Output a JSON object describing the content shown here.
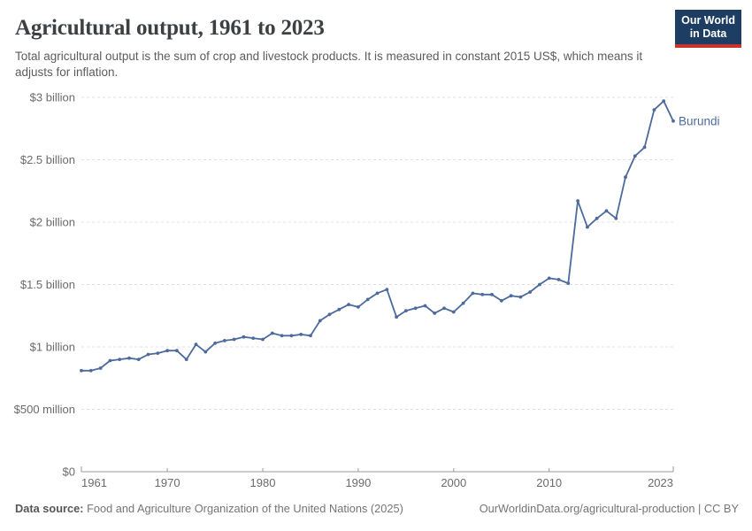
{
  "header": {
    "title": "Agricultural output, 1961 to 2023",
    "subtitle": "Total agricultural output is the sum of crop and livestock products. It is measured in constant 2015 US$, which means it adjusts for inflation.",
    "logo": {
      "line1": "Our World",
      "line2": "in Data",
      "bg_color": "#1d3d63",
      "stripe_color": "#cb342a"
    }
  },
  "chart_data": {
    "type": "line",
    "title": "Agricultural output, 1961 to 2023",
    "entity": "Burundi",
    "unit": "constant 2015 US$ (billions)",
    "line_color": "#4c6a9c",
    "grid": true,
    "legend_position": "end-of-line label",
    "x_range": [
      1961,
      2023
    ],
    "y_range_billion": [
      0,
      3
    ],
    "x_axis": {
      "ticks": [
        1961,
        1970,
        1980,
        1990,
        2000,
        2010,
        2023
      ]
    },
    "y_axis": {
      "ticks": [
        {
          "value": 0,
          "label": "$0"
        },
        {
          "value": 0.5,
          "label": "$500 million"
        },
        {
          "value": 1,
          "label": "$1 billion"
        },
        {
          "value": 1.5,
          "label": "$1.5 billion"
        },
        {
          "value": 2,
          "label": "$2 billion"
        },
        {
          "value": 2.5,
          "label": "$2.5 billion"
        },
        {
          "value": 3,
          "label": "$3 billion"
        }
      ]
    },
    "x": [
      1961,
      1962,
      1963,
      1964,
      1965,
      1966,
      1967,
      1968,
      1969,
      1970,
      1971,
      1972,
      1973,
      1974,
      1975,
      1976,
      1977,
      1978,
      1979,
      1980,
      1981,
      1982,
      1983,
      1984,
      1985,
      1986,
      1987,
      1988,
      1989,
      1990,
      1991,
      1992,
      1993,
      1994,
      1995,
      1996,
      1997,
      1998,
      1999,
      2000,
      2001,
      2002,
      2003,
      2004,
      2005,
      2006,
      2007,
      2008,
      2009,
      2010,
      2011,
      2012,
      2013,
      2014,
      2015,
      2016,
      2017,
      2018,
      2019,
      2020,
      2021,
      2022,
      2023
    ],
    "values_billion_usd": [
      0.81,
      0.81,
      0.83,
      0.89,
      0.9,
      0.91,
      0.9,
      0.94,
      0.95,
      0.97,
      0.97,
      0.9,
      1.02,
      0.96,
      1.03,
      1.05,
      1.06,
      1.08,
      1.07,
      1.06,
      1.11,
      1.09,
      1.09,
      1.1,
      1.09,
      1.21,
      1.26,
      1.3,
      1.34,
      1.32,
      1.38,
      1.43,
      1.46,
      1.24,
      1.29,
      1.31,
      1.33,
      1.27,
      1.31,
      1.28,
      1.35,
      1.43,
      1.42,
      1.42,
      1.37,
      1.41,
      1.4,
      1.44,
      1.5,
      1.55,
      1.54,
      1.51,
      2.17,
      1.96,
      2.03,
      2.09,
      2.03,
      2.36,
      2.53,
      2.6,
      2.9,
      2.97,
      2.81
    ]
  },
  "footer": {
    "source_label": "Data source:",
    "source_text": " Food and Agriculture Organization of the United Nations (2025)",
    "link_text": "OurWorldinData.org/agricultural-production | CC BY"
  }
}
